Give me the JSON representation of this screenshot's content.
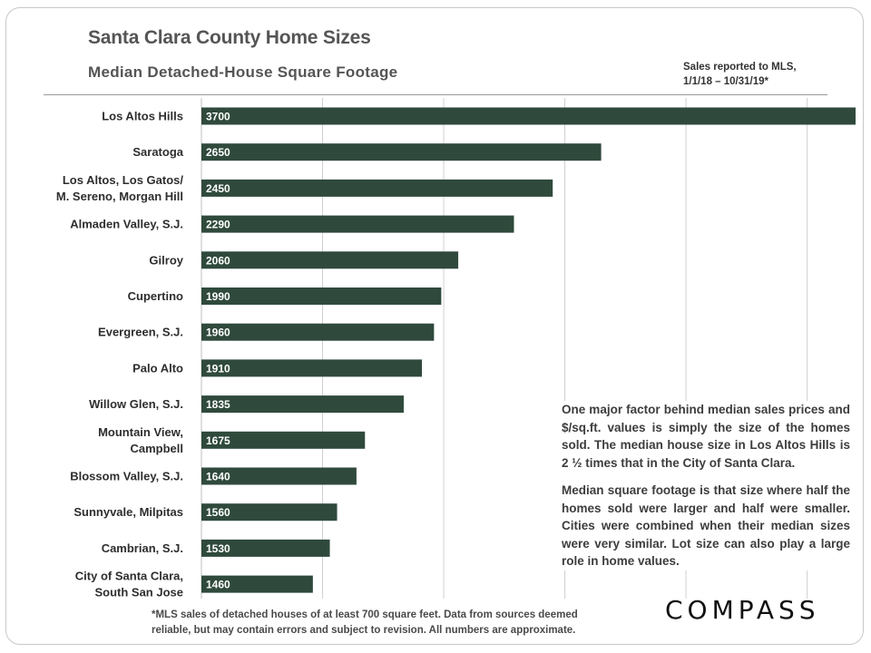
{
  "title": "Santa Clara County Home Sizes",
  "subtitle": "Median Detached-House  Square  Footage",
  "source_note": [
    "Sales reported to MLS,",
    "1/1/18 – 10/31/19*"
  ],
  "commentary": [
    "One major factor behind median sales prices and $/sq.ft. values is simply the size of the homes sold. The median house size in Los Altos Hills is 2 ½ times that in the City of Santa Clara.",
    "Median square footage is that size where half the homes sold were larger and half were smaller. Cities were combined when their median sizes were very similar. Lot size can also play a large role in home values."
  ],
  "footnote": "*MLS sales of detached houses of at least 700 square feet. Data from sources deemed reliable, but may contain errors and subject to revision. All numbers are approximate.",
  "logo_text": "COMPASS",
  "chart_data": {
    "type": "bar",
    "orientation": "horizontal",
    "title": "Santa Clara County Home Sizes",
    "subtitle": "Median Detached-House  Square  Footage",
    "categories": [
      [
        "Los Altos Hills"
      ],
      [
        "Saratoga"
      ],
      [
        "Los Altos, Los Gatos/",
        "M. Sereno, Morgan Hill"
      ],
      [
        "Almaden Valley, S.J."
      ],
      [
        "Gilroy"
      ],
      [
        "Cupertino"
      ],
      [
        "Evergreen, S.J."
      ],
      [
        "Palo Alto"
      ],
      [
        "Willow Glen, S.J."
      ],
      [
        "Mountain View,",
        "Campbell"
      ],
      [
        "Blossom Valley, S.J."
      ],
      [
        "Sunnyvale, Milpitas"
      ],
      [
        "Cambrian, S.J."
      ],
      [
        "City of Santa Clara,",
        "South San Jose"
      ]
    ],
    "values": [
      3700,
      2650,
      2450,
      2290,
      2060,
      1990,
      1960,
      1910,
      1835,
      1675,
      1640,
      1560,
      1530,
      1460
    ],
    "value_labels": [
      "3700",
      "2650",
      "2450",
      "2290",
      "2060",
      "1990",
      "1960",
      "1910",
      "1835",
      "1675",
      "1640",
      "1560",
      "1530",
      "1460"
    ],
    "xlim": [
      1000,
      3700
    ],
    "x_gridline_step": 500,
    "grid": true,
    "legend": "none",
    "colors": {
      "bar": "#2f4a3c",
      "grid": "#d0d0d0",
      "bar_text": "#ffffff"
    }
  }
}
